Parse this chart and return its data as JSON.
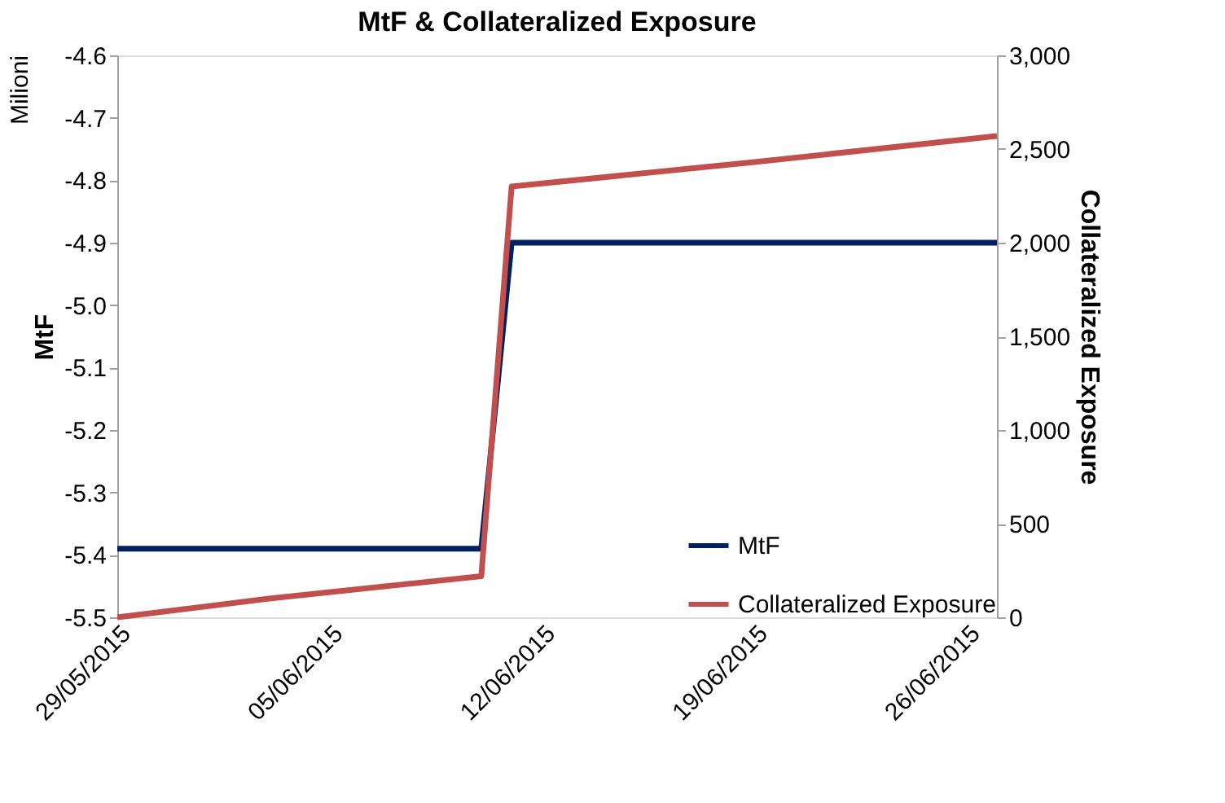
{
  "chart_data": {
    "type": "line",
    "title": "MtF & Collateralized Exposure",
    "ylabel": "MtF",
    "y2label": "Collateralized Exposure",
    "annotations": [
      "Milioni"
    ],
    "series": [
      {
        "name": "MtF",
        "color": "#002060",
        "x": [
          "2015-05-29",
          "2015-06-10",
          "2015-06-11",
          "2015-06-27"
        ],
        "values": [
          -5.39,
          -5.39,
          -4.9,
          -4.9
        ]
      },
      {
        "name": "Collateralized Exposure",
        "color": "#c0504d",
        "axis": "y2",
        "x": [
          "2015-05-29",
          "2015-06-03",
          "2015-06-10",
          "2015-06-11",
          "2015-06-19",
          "2015-06-27"
        ],
        "values": [
          0,
          100,
          220,
          2300,
          2430,
          2570
        ]
      }
    ],
    "xlim": [
      "2015-05-29",
      "2015-06-27"
    ],
    "xticks": [
      {
        "value": "2015-05-29",
        "label": "29/05/2015"
      },
      {
        "value": "2015-06-05",
        "label": "05/06/2015"
      },
      {
        "value": "2015-06-12",
        "label": "12/06/2015"
      },
      {
        "value": "2015-06-19",
        "label": "19/06/2015"
      },
      {
        "value": "2015-06-26",
        "label": "26/06/2015"
      }
    ],
    "ylim": [
      -5.5,
      -4.6
    ],
    "yticks": [
      {
        "value": -5.5,
        "label": "-5.5"
      },
      {
        "value": -5.4,
        "label": "-5.4"
      },
      {
        "value": -5.3,
        "label": "-5.3"
      },
      {
        "value": -5.2,
        "label": "-5.2"
      },
      {
        "value": -5.1,
        "label": "-5.1"
      },
      {
        "value": -5.0,
        "label": "-5.0"
      },
      {
        "value": -4.9,
        "label": "-4.9"
      },
      {
        "value": -4.8,
        "label": "-4.8"
      },
      {
        "value": -4.7,
        "label": "-4.7"
      },
      {
        "value": -4.6,
        "label": "-4.6"
      }
    ],
    "y2lim": [
      0,
      3000
    ],
    "y2ticks": [
      {
        "value": 0,
        "label": "0"
      },
      {
        "value": 500,
        "label": "500"
      },
      {
        "value": 1000,
        "label": "1,000"
      },
      {
        "value": 1500,
        "label": "1,500"
      },
      {
        "value": 2000,
        "label": "2,000"
      },
      {
        "value": 2500,
        "label": "2,500"
      },
      {
        "value": 3000,
        "label": "3,000"
      }
    ],
    "grid": false,
    "legend": "bottom right",
    "line_style": "solid",
    "marker": "none"
  }
}
